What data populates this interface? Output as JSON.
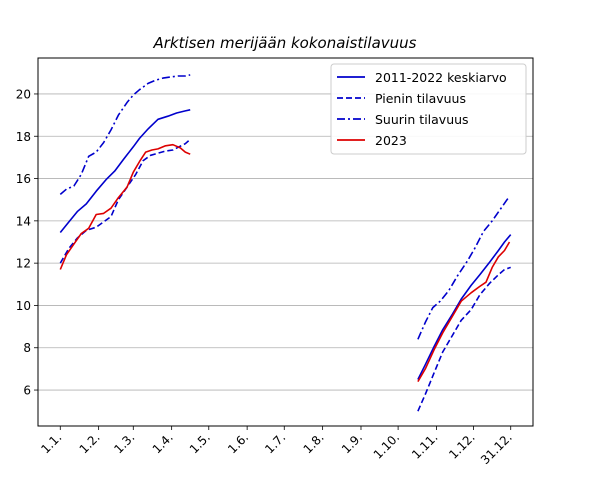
{
  "chart_data": {
    "type": "line",
    "title": "Arktisen merijään kokonaistilavuus",
    "xlabel": "",
    "ylabel": "",
    "x_ticks": [
      {
        "day": 1,
        "label": "1.1."
      },
      {
        "day": 32,
        "label": "1.2."
      },
      {
        "day": 60,
        "label": "1.3."
      },
      {
        "day": 91,
        "label": "1.4."
      },
      {
        "day": 121,
        "label": "1.5."
      },
      {
        "day": 152,
        "label": "1.6."
      },
      {
        "day": 182,
        "label": "1.7."
      },
      {
        "day": 213,
        "label": "1.8."
      },
      {
        "day": 244,
        "label": "1.9."
      },
      {
        "day": 274,
        "label": "1.10."
      },
      {
        "day": 305,
        "label": "1.11."
      },
      {
        "day": 335,
        "label": "1.12."
      },
      {
        "day": 365,
        "label": "31.12."
      }
    ],
    "xlim": [
      -17,
      383
    ],
    "ylim": [
      4.3,
      21.7
    ],
    "y_ticks": [
      6,
      8,
      10,
      12,
      14,
      16,
      18,
      20
    ],
    "grid": "horizontal",
    "legend_position": "top-right",
    "series": [
      {
        "name": "2011-2022 keskiarvo",
        "color": "#0000cc",
        "style": "solid",
        "segments": [
          [
            [
              1,
              13.45
            ],
            [
              8,
              13.95
            ],
            [
              15,
              14.45
            ],
            [
              22,
              14.8
            ],
            [
              30,
              15.4
            ],
            [
              38,
              15.95
            ],
            [
              45,
              16.35
            ],
            [
              52,
              16.9
            ],
            [
              60,
              17.5
            ],
            [
              65,
              17.9
            ],
            [
              72,
              18.35
            ],
            [
              80,
              18.8
            ],
            [
              88,
              18.95
            ],
            [
              95,
              19.1
            ],
            [
              102,
              19.2
            ],
            [
              106,
              19.25
            ]
          ],
          [
            [
              290,
              6.5
            ],
            [
              296,
              7.2
            ],
            [
              303,
              8.05
            ],
            [
              310,
              8.85
            ],
            [
              318,
              9.6
            ],
            [
              325,
              10.3
            ],
            [
              333,
              10.95
            ],
            [
              340,
              11.45
            ],
            [
              348,
              12.05
            ],
            [
              355,
              12.6
            ],
            [
              360,
              13.0
            ],
            [
              365,
              13.35
            ]
          ]
        ]
      },
      {
        "name": "Pienin tilavuus",
        "color": "#0000cc",
        "style": "dashed",
        "segments": [
          [
            [
              1,
              12.0
            ],
            [
              8,
              12.7
            ],
            [
              15,
              13.2
            ],
            [
              22,
              13.55
            ],
            [
              30,
              13.7
            ],
            [
              36,
              13.95
            ],
            [
              42,
              14.2
            ],
            [
              48,
              15.0
            ],
            [
              55,
              15.6
            ],
            [
              62,
              16.2
            ],
            [
              68,
              16.85
            ],
            [
              74,
              17.1
            ],
            [
              80,
              17.2
            ],
            [
              86,
              17.3
            ],
            [
              92,
              17.35
            ],
            [
              97,
              17.5
            ],
            [
              102,
              17.65
            ],
            [
              106,
              17.85
            ]
          ],
          [
            [
              290,
              5.0
            ],
            [
              296,
              5.8
            ],
            [
              303,
              6.8
            ],
            [
              310,
              7.8
            ],
            [
              318,
              8.6
            ],
            [
              325,
              9.3
            ],
            [
              333,
              9.8
            ],
            [
              340,
              10.5
            ],
            [
              348,
              11.05
            ],
            [
              355,
              11.45
            ],
            [
              360,
              11.7
            ],
            [
              365,
              11.8
            ]
          ]
        ]
      },
      {
        "name": "Suurin tilavuus",
        "color": "#0000cc",
        "style": "dashdot",
        "segments": [
          [
            [
              1,
              15.25
            ],
            [
              6,
              15.5
            ],
            [
              12,
              15.65
            ],
            [
              18,
              16.2
            ],
            [
              24,
              17.05
            ],
            [
              30,
              17.25
            ],
            [
              36,
              17.7
            ],
            [
              42,
              18.3
            ],
            [
              48,
              19.0
            ],
            [
              55,
              19.6
            ],
            [
              60,
              19.95
            ],
            [
              65,
              20.2
            ],
            [
              72,
              20.5
            ],
            [
              78,
              20.65
            ],
            [
              84,
              20.75
            ],
            [
              90,
              20.8
            ],
            [
              96,
              20.85
            ],
            [
              102,
              20.85
            ],
            [
              106,
              20.9
            ]
          ],
          [
            [
              290,
              8.4
            ],
            [
              296,
              9.2
            ],
            [
              302,
              9.9
            ],
            [
              308,
              10.2
            ],
            [
              315,
              10.7
            ],
            [
              322,
              11.4
            ],
            [
              330,
              12.1
            ],
            [
              336,
              12.7
            ],
            [
              343,
              13.5
            ],
            [
              350,
              14.0
            ],
            [
              356,
              14.5
            ],
            [
              362,
              15.0
            ],
            [
              364,
              15.15
            ]
          ]
        ]
      },
      {
        "name": "2023",
        "color": "#dd0000",
        "style": "solid",
        "segments": [
          [
            [
              1,
              11.7
            ],
            [
              6,
              12.4
            ],
            [
              12,
              12.9
            ],
            [
              18,
              13.4
            ],
            [
              24,
              13.65
            ],
            [
              30,
              14.3
            ],
            [
              36,
              14.35
            ],
            [
              42,
              14.6
            ],
            [
              48,
              15.1
            ],
            [
              55,
              15.6
            ],
            [
              60,
              16.3
            ],
            [
              65,
              16.8
            ],
            [
              70,
              17.25
            ],
            [
              75,
              17.35
            ],
            [
              80,
              17.4
            ],
            [
              86,
              17.55
            ],
            [
              92,
              17.6
            ],
            [
              98,
              17.45
            ],
            [
              102,
              17.25
            ],
            [
              106,
              17.15
            ]
          ],
          [
            [
              290,
              6.4
            ],
            [
              296,
              7.0
            ],
            [
              303,
              7.9
            ],
            [
              310,
              8.7
            ],
            [
              318,
              9.5
            ],
            [
              325,
              10.2
            ],
            [
              333,
              10.6
            ],
            [
              340,
              10.9
            ],
            [
              345,
              11.1
            ],
            [
              350,
              11.8
            ],
            [
              355,
              12.3
            ],
            [
              360,
              12.6
            ],
            [
              364,
              13.0
            ]
          ]
        ]
      }
    ]
  }
}
